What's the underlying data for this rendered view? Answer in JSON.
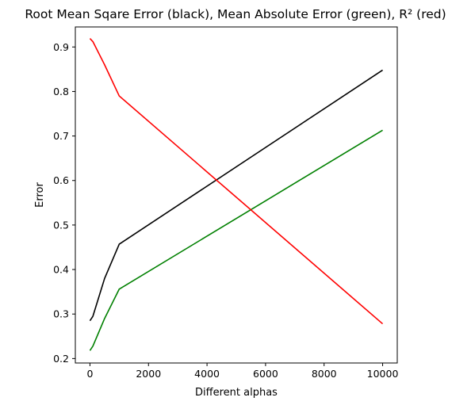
{
  "chart_data": {
    "type": "line",
    "title": "Root Mean Sqare Error (black),  Mean Absolute Error (green), R² (red)",
    "xlabel": "Different alphas",
    "ylabel": "Error",
    "xlim": [
      -500,
      10500
    ],
    "ylim": [
      0.19,
      0.945
    ],
    "xticks": [
      0,
      2000,
      4000,
      6000,
      8000,
      10000
    ],
    "yticks": [
      0.2,
      0.3,
      0.4,
      0.5,
      0.6,
      0.7,
      0.8,
      0.9
    ],
    "xtick_labels": [
      "0",
      "2000",
      "4000",
      "6000",
      "8000",
      "10000"
    ],
    "ytick_labels": [
      "0.2",
      "0.3",
      "0.4",
      "0.5",
      "0.6",
      "0.7",
      "0.8",
      "0.9"
    ],
    "grid": false,
    "legend": "none",
    "series": [
      {
        "color": "#000000",
        "x": [
          0,
          100,
          500,
          1000,
          10000
        ],
        "y": [
          0.285,
          0.295,
          0.38,
          0.457,
          0.848
        ]
      },
      {
        "color": "#008000",
        "x": [
          0,
          100,
          500,
          1000,
          10000
        ],
        "y": [
          0.218,
          0.228,
          0.29,
          0.356,
          0.713
        ]
      },
      {
        "color": "#ff0000",
        "x": [
          0,
          100,
          500,
          1000,
          10000
        ],
        "y": [
          0.919,
          0.912,
          0.86,
          0.79,
          0.278
        ]
      }
    ]
  }
}
